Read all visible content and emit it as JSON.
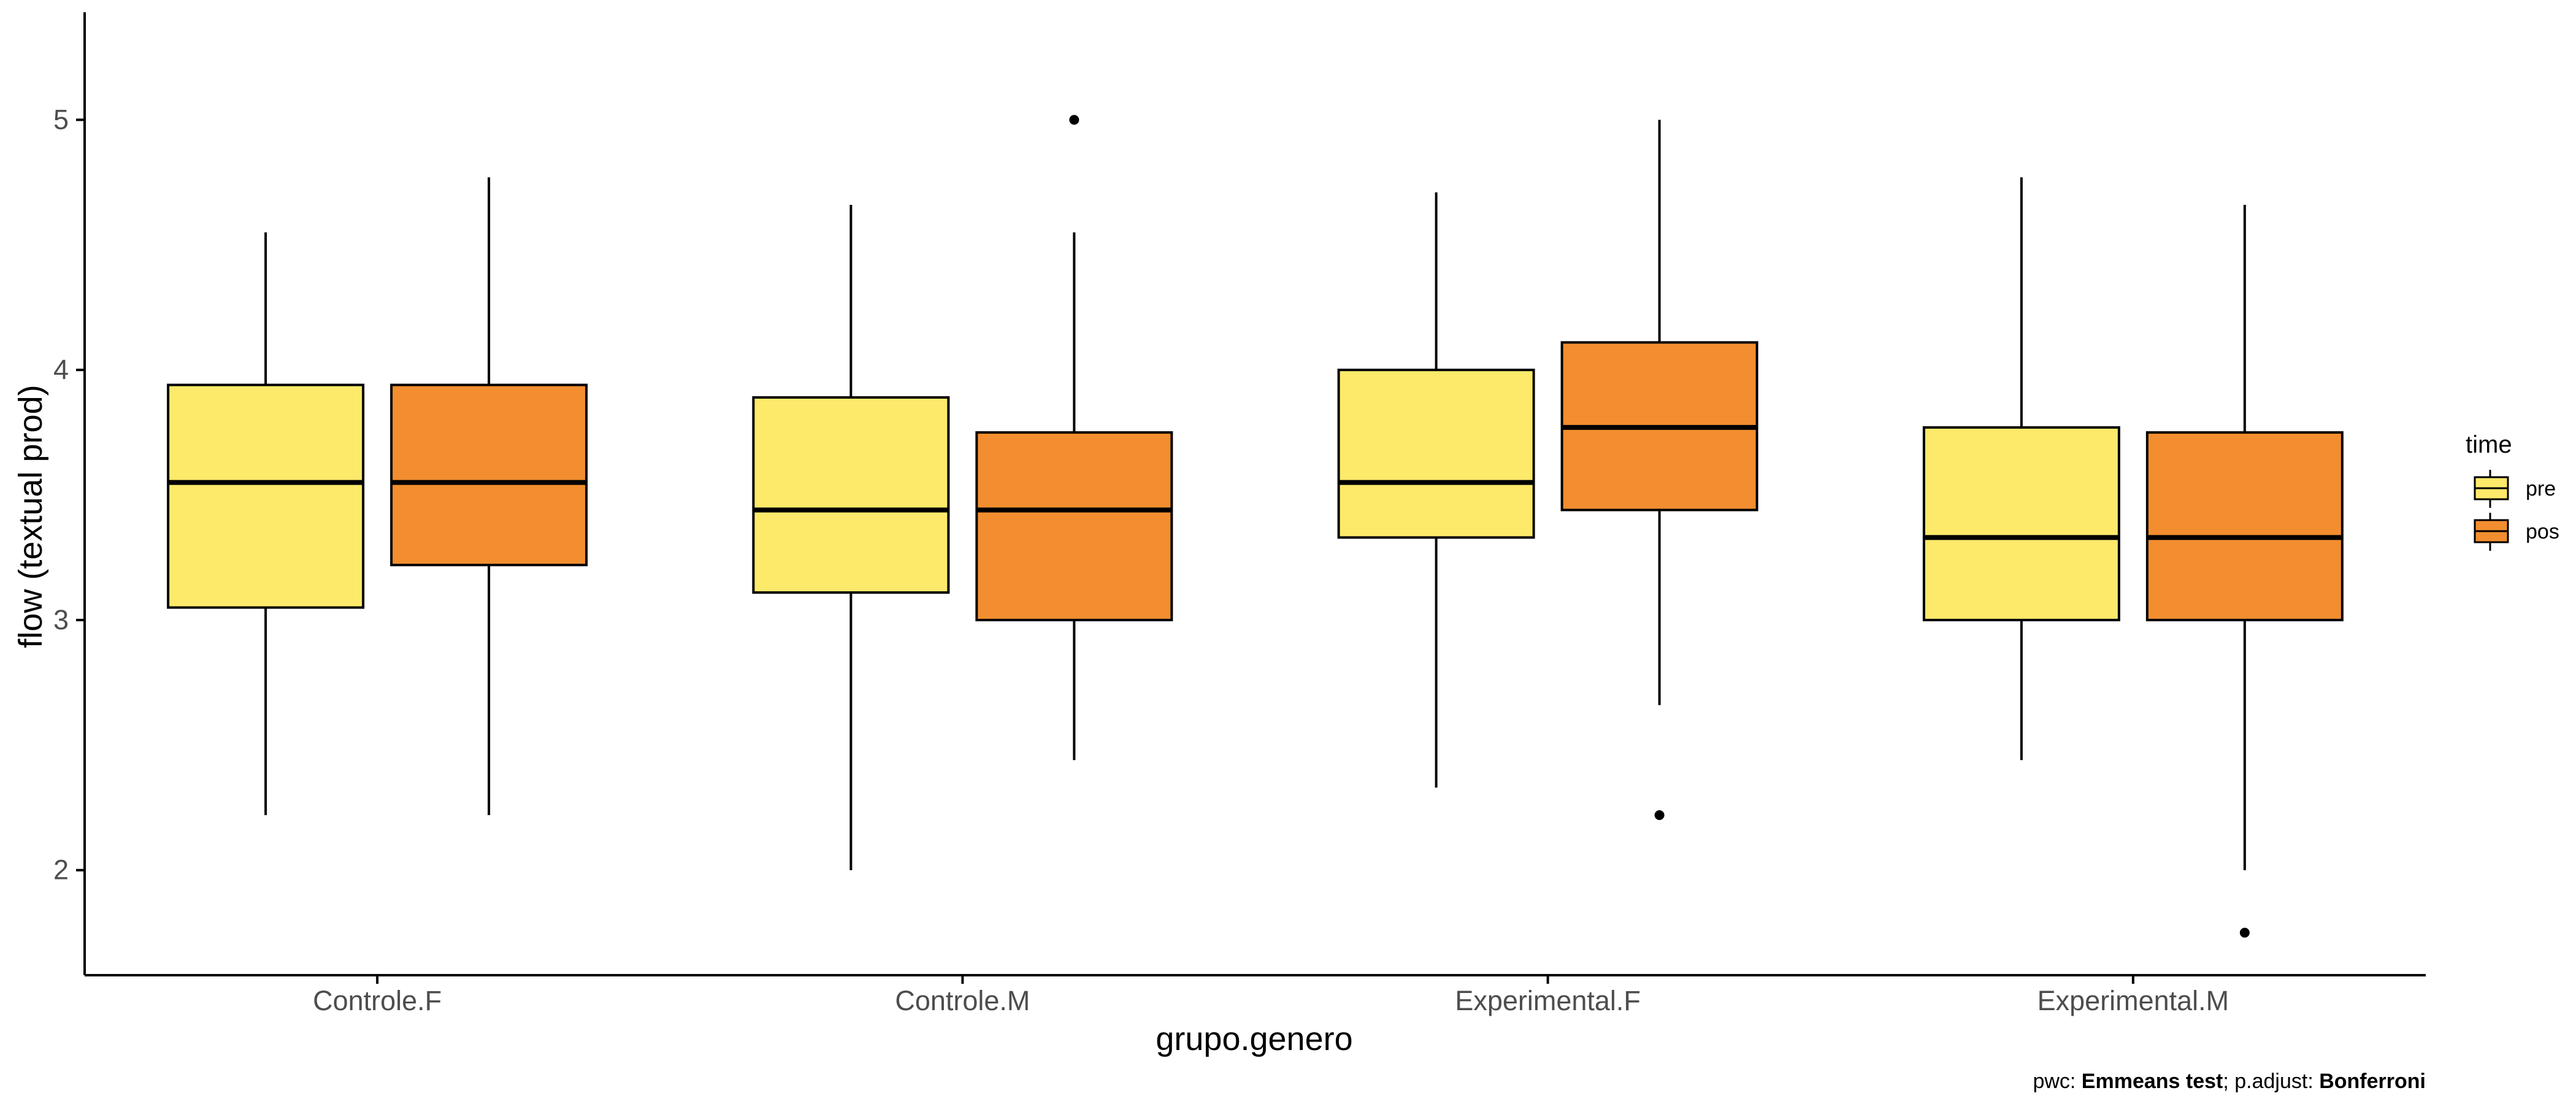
{
  "chart_data": {
    "type": "boxplot",
    "xlabel": "grupo.genero",
    "ylabel": "flow (textual prod)",
    "ylim": [
      1.58,
      5.43
    ],
    "yticks": [
      2,
      3,
      4,
      5
    ],
    "categories": [
      "Controle.F",
      "Controle.M",
      "Experimental.F",
      "Experimental.M"
    ],
    "legend": {
      "title": "time",
      "position": "right",
      "entries": [
        {
          "name": "pre",
          "color": "#FDEA6A"
        },
        {
          "name": "pos",
          "color": "#F28E2F"
        }
      ]
    },
    "series": [
      {
        "name": "pre",
        "color": "#FDEA6A",
        "boxes": [
          {
            "category": "Controle.F",
            "whisker_low": 2.22,
            "q1": 3.05,
            "median": 3.55,
            "q3": 3.94,
            "whisker_high": 4.55,
            "outliers": []
          },
          {
            "category": "Controle.M",
            "whisker_low": 2.0,
            "q1": 3.11,
            "median": 3.44,
            "q3": 3.89,
            "whisker_high": 4.66,
            "outliers": []
          },
          {
            "category": "Experimental.F",
            "whisker_low": 2.33,
            "q1": 3.33,
            "median": 3.55,
            "q3": 4.0,
            "whisker_high": 4.71,
            "outliers": []
          },
          {
            "category": "Experimental.M",
            "whisker_low": 2.44,
            "q1": 3.0,
            "median": 3.33,
            "q3": 3.77,
            "whisker_high": 4.77,
            "outliers": []
          }
        ]
      },
      {
        "name": "pos",
        "color": "#F28E2F",
        "boxes": [
          {
            "category": "Controle.F",
            "whisker_low": 2.22,
            "q1": 3.22,
            "median": 3.55,
            "q3": 3.94,
            "whisker_high": 4.77,
            "outliers": []
          },
          {
            "category": "Controle.M",
            "whisker_low": 2.44,
            "q1": 3.0,
            "median": 3.44,
            "q3": 3.75,
            "whisker_high": 4.55,
            "outliers": [
              5.0
            ]
          },
          {
            "category": "Experimental.F",
            "whisker_low": 2.66,
            "q1": 3.44,
            "median": 3.77,
            "q3": 4.11,
            "whisker_high": 5.0,
            "outliers": [
              2.22
            ]
          },
          {
            "category": "Experimental.M",
            "whisker_low": 2.0,
            "q1": 3.0,
            "median": 3.33,
            "q3": 3.75,
            "whisker_high": 4.66,
            "outliers": [
              1.75
            ]
          }
        ]
      }
    ],
    "caption": {
      "segments": [
        {
          "text": "pwc: ",
          "bold": false
        },
        {
          "text": "Emmeans test",
          "bold": true
        },
        {
          "text": "; p.adjust: ",
          "bold": false
        },
        {
          "text": "Bonferroni",
          "bold": true
        }
      ]
    }
  }
}
